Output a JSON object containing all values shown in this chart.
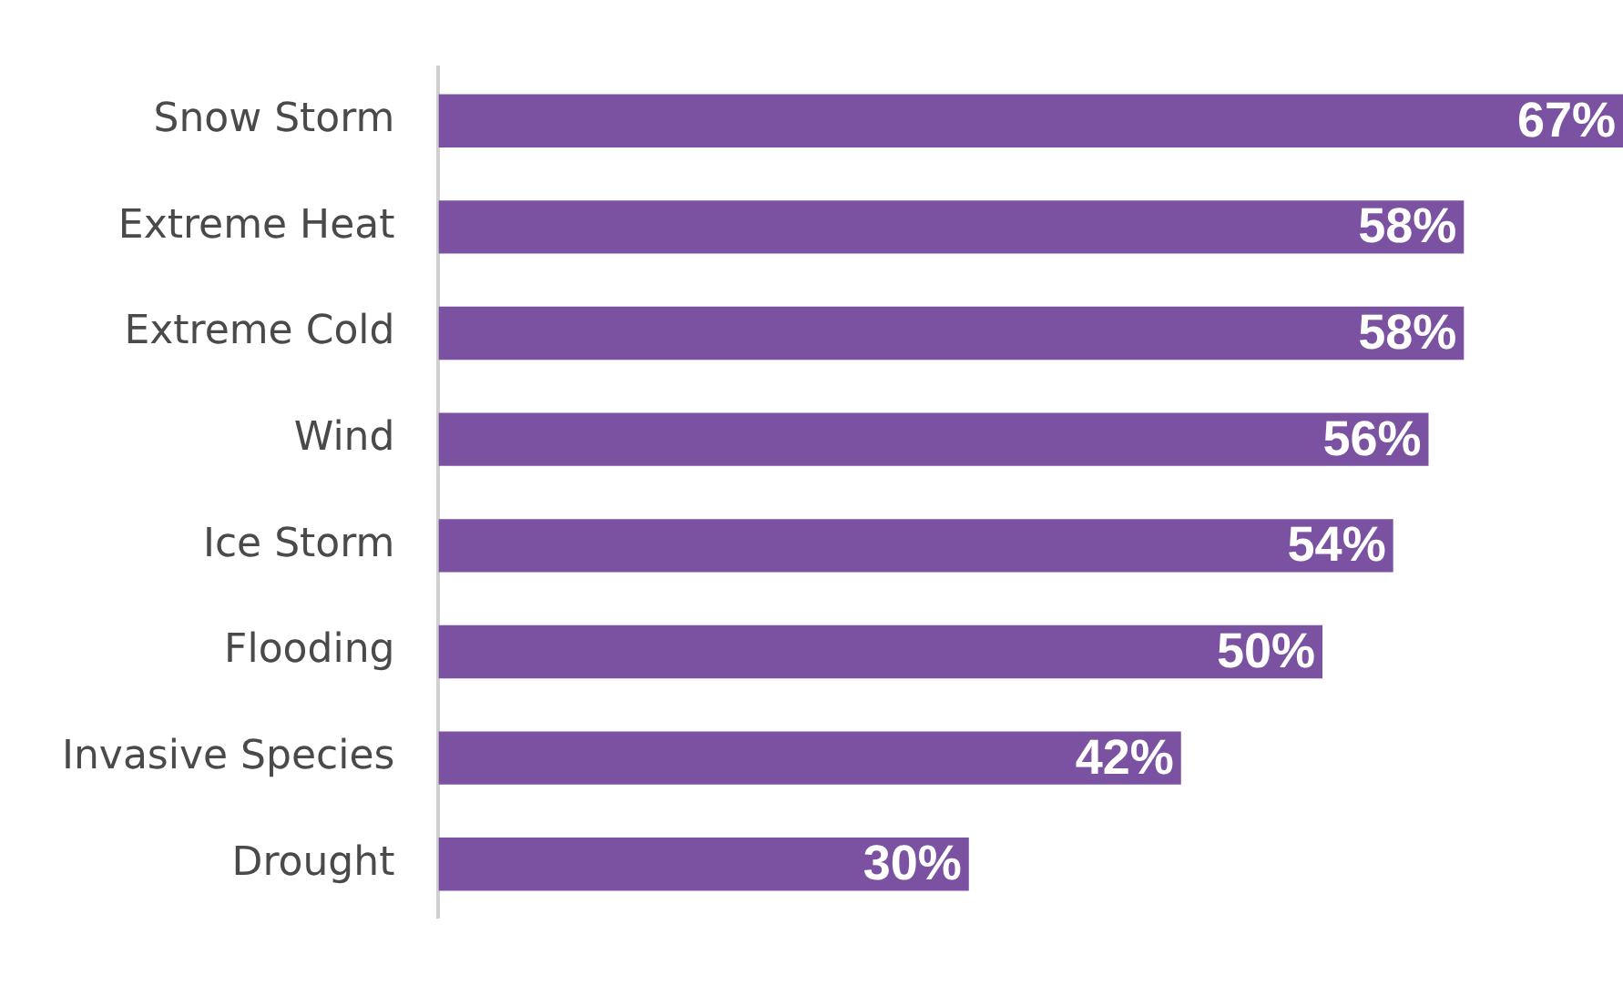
{
  "chart_data": {
    "type": "bar",
    "orientation": "horizontal",
    "categories": [
      "Snow Storm",
      "Extreme Heat",
      "Extreme Cold",
      "Wind",
      "Ice Storm",
      "Flooding",
      "Invasive Species",
      "Drought"
    ],
    "values": [
      67,
      58,
      58,
      56,
      54,
      50,
      42,
      30
    ],
    "value_labels": [
      "67%",
      "58%",
      "58%",
      "56%",
      "54%",
      "50%",
      "42%",
      "30%"
    ],
    "color": "#7b52a1",
    "grid": false,
    "legend": false,
    "tick_labels": "y"
  }
}
